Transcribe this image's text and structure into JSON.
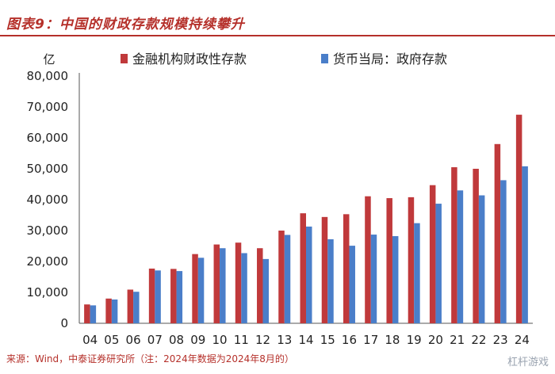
{
  "header": {
    "title": "图表9：中国的财政存款规模持续攀升",
    "source": "来源：Wind，中泰证券研究所（注：2024年数据为2024年8月的）",
    "watermark": "杠杆游戏"
  },
  "colors": {
    "series1": "#c0393b",
    "series2": "#4a7ec9",
    "accent": "#b5302a"
  },
  "chart_data": {
    "type": "bar",
    "ylabel": "亿",
    "ylim": [
      0,
      80000
    ],
    "yticks": [
      0,
      10000,
      20000,
      30000,
      40000,
      50000,
      60000,
      70000,
      80000
    ],
    "ytick_labels": [
      "0",
      "10,000",
      "20,000",
      "30,000",
      "40,000",
      "50,000",
      "60,000",
      "70,000",
      "80,000"
    ],
    "categories": [
      "04",
      "05",
      "06",
      "07",
      "08",
      "09",
      "10",
      "11",
      "12",
      "13",
      "14",
      "15",
      "16",
      "17",
      "18",
      "19",
      "20",
      "21",
      "22",
      "23",
      "24"
    ],
    "grid": false,
    "legend_position": "top",
    "series": [
      {
        "name": "金融机构财政性存款",
        "values": [
          6100,
          8000,
          10900,
          17700,
          17600,
          22400,
          25500,
          26100,
          24300,
          30000,
          35600,
          34400,
          35300,
          41100,
          40500,
          40800,
          44700,
          50500,
          50000,
          58000,
          67500
        ]
      },
      {
        "name": "货币当局：政府存款",
        "values": [
          5800,
          7700,
          10200,
          17100,
          16900,
          21200,
          24300,
          22700,
          20800,
          28600,
          31300,
          27200,
          25100,
          28700,
          28200,
          32400,
          38700,
          43000,
          41400,
          46300,
          50800
        ]
      }
    ]
  }
}
